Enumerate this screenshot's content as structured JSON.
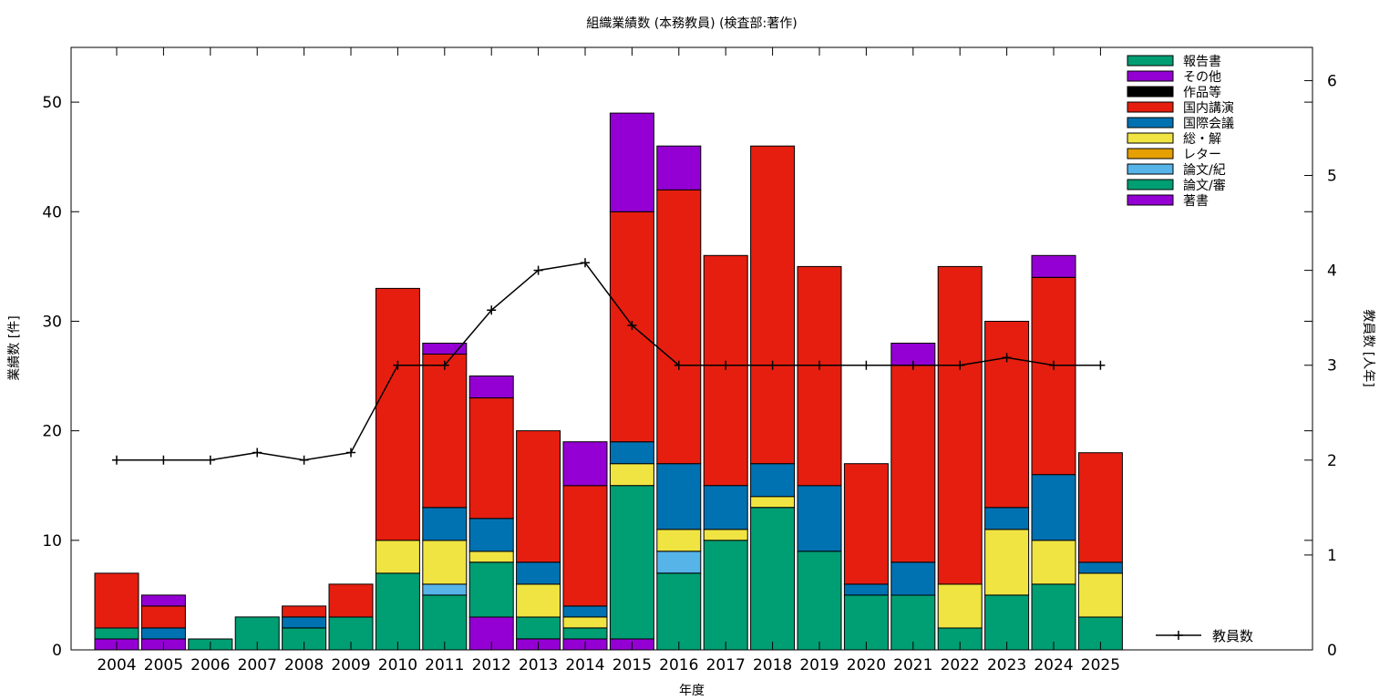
{
  "chart_data": {
    "type": "bar",
    "stacked": true,
    "title": "組織業績数 (本務教員) (検査部:著作)",
    "xlabel": "年度",
    "ylabel": "業績数 [件]",
    "y2label": "教員数 [人年]",
    "ylim": [
      0,
      55
    ],
    "y2lim": [
      0,
      6.35
    ],
    "yticks": [
      0,
      10,
      20,
      30,
      40,
      50
    ],
    "y2ticks": [
      0,
      1,
      2,
      3,
      4,
      5,
      6
    ],
    "grid": false,
    "legend_position": "top-right",
    "categories": [
      "2004",
      "2005",
      "2006",
      "2007",
      "2008",
      "2009",
      "2010",
      "2011",
      "2012",
      "2013",
      "2014",
      "2015",
      "2016",
      "2017",
      "2018",
      "2019",
      "2020",
      "2021",
      "2022",
      "2023",
      "2024",
      "2025"
    ],
    "series": [
      {
        "name": "著書",
        "color": "#9400d3",
        "values": [
          1,
          1,
          0,
          0,
          0,
          0,
          0,
          0,
          3,
          1,
          1,
          1,
          0,
          0,
          0,
          0,
          0,
          0,
          0,
          0,
          0,
          0
        ]
      },
      {
        "name": "論文/審",
        "color": "#009e73",
        "values": [
          1,
          0,
          1,
          3,
          2,
          3,
          7,
          5,
          5,
          2,
          1,
          14,
          7,
          10,
          13,
          9,
          5,
          5,
          2,
          5,
          6,
          3
        ]
      },
      {
        "name": "論文/紀",
        "color": "#56b4e9",
        "values": [
          0,
          0,
          0,
          0,
          0,
          0,
          0,
          1,
          0,
          0,
          0,
          0,
          2,
          0,
          0,
          0,
          0,
          0,
          0,
          0,
          0,
          0
        ]
      },
      {
        "name": "レター",
        "color": "#e69f00",
        "values": [
          0,
          0,
          0,
          0,
          0,
          0,
          0,
          0,
          0,
          0,
          0,
          0,
          0,
          0,
          0,
          0,
          0,
          0,
          0,
          0,
          0,
          0
        ]
      },
      {
        "name": "総・解",
        "color": "#f0e442",
        "values": [
          0,
          0,
          0,
          0,
          0,
          0,
          3,
          4,
          1,
          3,
          1,
          2,
          2,
          1,
          1,
          0,
          0,
          0,
          4,
          6,
          4,
          4
        ]
      },
      {
        "name": "国際会議",
        "color": "#0072b2",
        "values": [
          0,
          1,
          0,
          0,
          1,
          0,
          0,
          3,
          3,
          2,
          1,
          2,
          6,
          4,
          3,
          6,
          1,
          3,
          0,
          2,
          6,
          1
        ]
      },
      {
        "name": "国内講演",
        "color": "#e51e10",
        "values": [
          5,
          2,
          0,
          0,
          1,
          3,
          23,
          14,
          11,
          12,
          11,
          21,
          25,
          21,
          29,
          20,
          11,
          18,
          29,
          17,
          18,
          10
        ]
      },
      {
        "name": "作品等",
        "color": "#000000",
        "values": [
          0,
          0,
          0,
          0,
          0,
          0,
          0,
          0,
          0,
          0,
          0,
          0,
          0,
          0,
          0,
          0,
          0,
          0,
          0,
          0,
          0,
          0
        ]
      },
      {
        "name": "その他",
        "color": "#9400d3",
        "values": [
          0,
          1,
          0,
          0,
          0,
          0,
          0,
          1,
          2,
          0,
          4,
          9,
          4,
          0,
          0,
          0,
          0,
          2,
          0,
          0,
          2,
          0
        ]
      },
      {
        "name": "報告書",
        "color": "#009e73",
        "values": [
          0,
          0,
          0,
          0,
          0,
          0,
          0,
          0,
          0,
          0,
          0,
          0,
          0,
          0,
          0,
          0,
          0,
          0,
          0,
          0,
          0,
          0
        ]
      }
    ],
    "legend_order": [
      "報告書",
      "その他",
      "作品等",
      "国内講演",
      "国際会議",
      "総・解",
      "レター",
      "論文/紀",
      "論文/審",
      "著書"
    ],
    "line_series": {
      "name": "教員数",
      "axis": "y2",
      "color": "#000000",
      "values": [
        2,
        2,
        2,
        2.08,
        2,
        2.08,
        3,
        3,
        3.58,
        4,
        4.08,
        3.42,
        3,
        3,
        3,
        3,
        3,
        3,
        3,
        3.08,
        3,
        3
      ]
    }
  }
}
